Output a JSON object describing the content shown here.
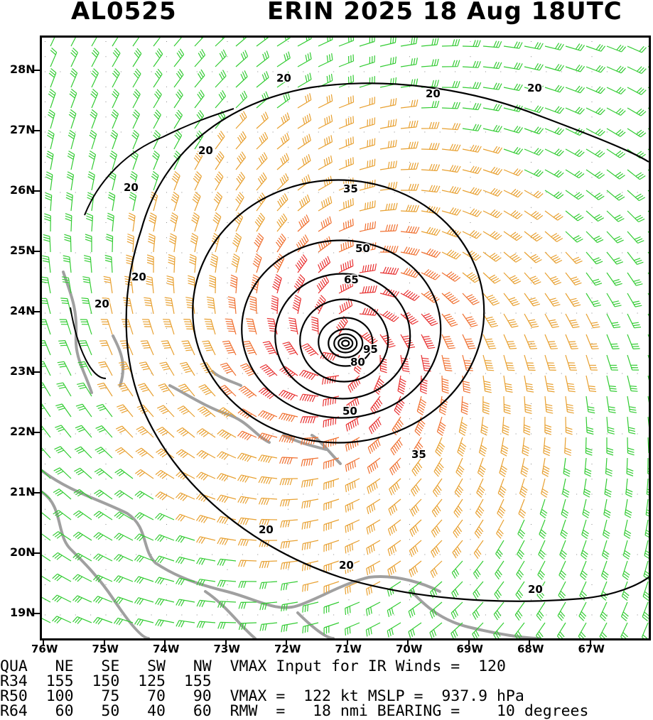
{
  "header": {
    "storm_id": "AL0525",
    "title": "ERIN 2025 18 Aug 18UTC"
  },
  "axes": {
    "lat_labels": [
      "28N",
      "27N",
      "26N",
      "25N",
      "24N",
      "23N",
      "22N",
      "21N",
      "20N",
      "19N"
    ],
    "lon_labels": [
      "76W",
      "75W",
      "74W",
      "73W",
      "72W",
      "71W",
      "70W",
      "69W",
      "68W",
      "67W"
    ]
  },
  "map": {
    "center_lon": -71.05,
    "center_lat": 23.5,
    "contour_labels": [
      "20",
      "20",
      "20",
      "20",
      "20",
      "20",
      "20",
      "20",
      "20",
      "20",
      "35",
      "35",
      "50",
      "50",
      "65",
      "80",
      "95"
    ],
    "colors": {
      "calm": "#000000",
      "gale": "#33cc33",
      "storm": "#e8a030",
      "strong": "#f07030",
      "hurricane": "#e83030",
      "land": "#a0a0a0"
    }
  },
  "stats": {
    "lines": [
      "QUA   NE   SE   SW   NW  VMAX Input for IR Winds =  120",
      "R34  155  150  125  155",
      "R50  100   75   70   90  VMAX =  122 kt MSLP =  937.9 hPa",
      "R64   60   50   40   60  RMW  =   18 nmi BEARING =    10 degrees"
    ]
  }
}
